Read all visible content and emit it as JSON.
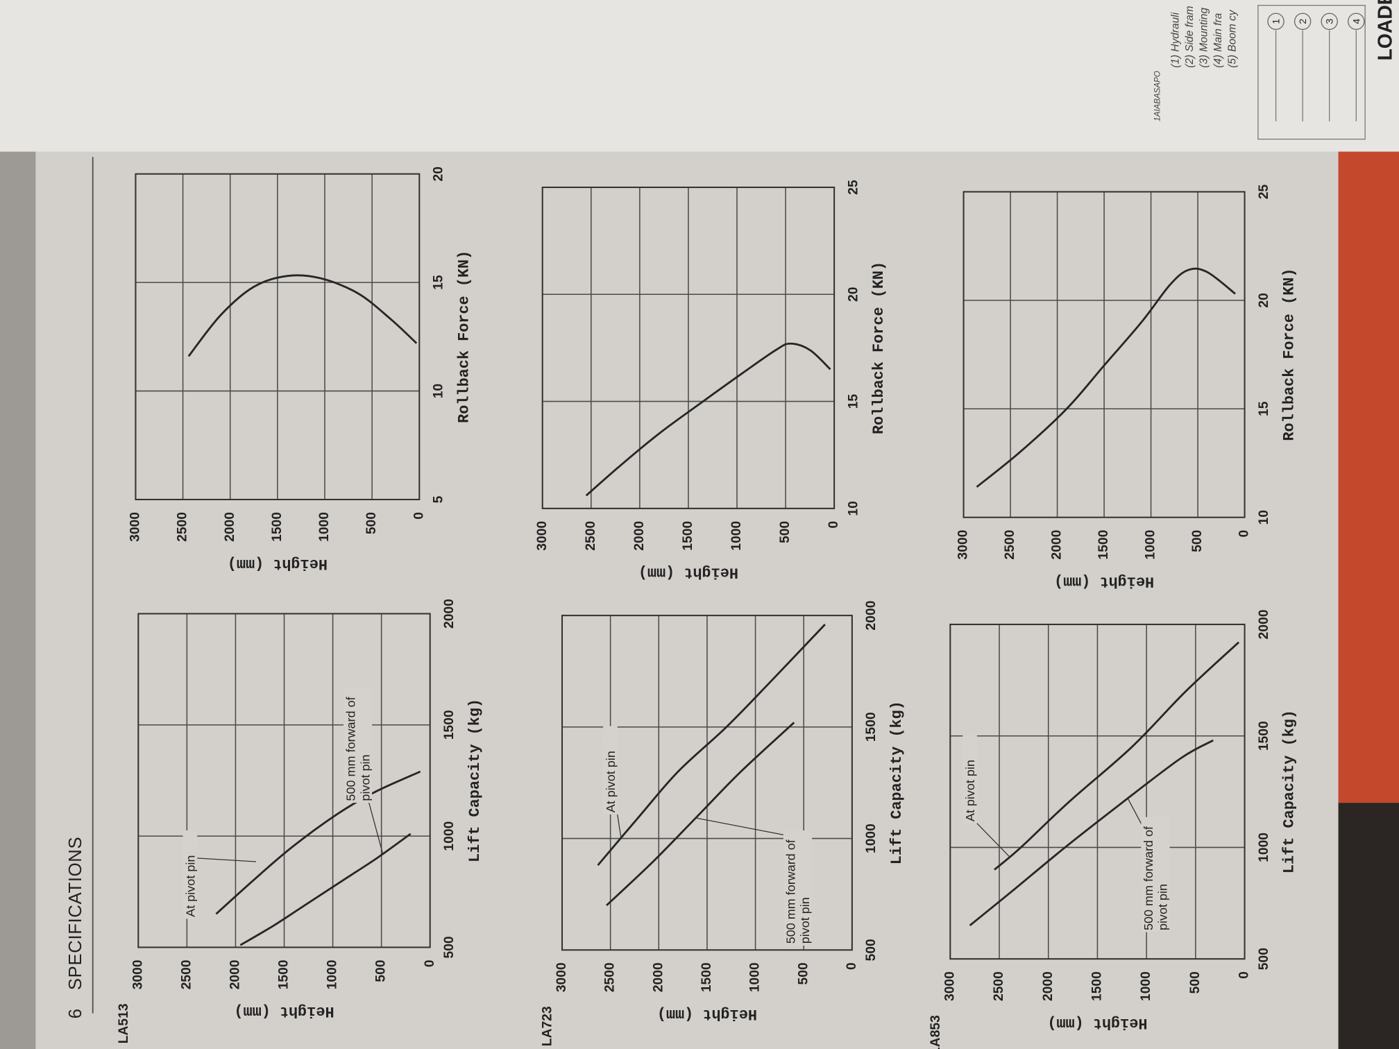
{
  "header": {
    "page_number": "6",
    "title": "SPECIFICATIONS"
  },
  "chart_data": [
    {
      "type": "line",
      "title": "LA513",
      "x_label": "Lift Capacity (kg)",
      "y_label": "Height (mm)",
      "xlim": [
        500,
        2000
      ],
      "xticks": [
        500,
        1000,
        1500,
        2000
      ],
      "ylim": [
        0,
        3000
      ],
      "yticks": [
        0,
        500,
        1000,
        1500,
        2000,
        2500,
        3000
      ],
      "grid": true,
      "series": [
        {
          "name": "At pivot pin",
          "color": "#262626",
          "x": [
            650,
            800,
            950,
            1100,
            1200,
            1290
          ],
          "values": [
            2200,
            1820,
            1420,
            950,
            560,
            100
          ]
        },
        {
          "name": "500 mm forward of pivot pin",
          "color": "#262626",
          "x": [
            510,
            600,
            700,
            800,
            900,
            1010
          ],
          "values": [
            1950,
            1600,
            1250,
            900,
            550,
            200
          ]
        }
      ]
    },
    {
      "type": "line",
      "x_label": "Rollback Force (KN)",
      "y_label": "Height (mm)",
      "xlim": [
        5,
        20
      ],
      "xticks": [
        5,
        10,
        15,
        20
      ],
      "ylim": [
        0,
        3000
      ],
      "yticks": [
        0,
        500,
        1000,
        1500,
        2000,
        2500,
        3000
      ],
      "grid": true,
      "series": [
        {
          "color": "#262626",
          "x": [
            11.6,
            13.5,
            14.8,
            15.3,
            15.2,
            14.5,
            13.3,
            12.2
          ],
          "values": [
            2440,
            2100,
            1750,
            1400,
            1050,
            650,
            300,
            30
          ]
        }
      ]
    },
    {
      "type": "line",
      "title": "LA723",
      "x_label": "Lift Capacity (kg)",
      "y_label": "Height (mm)",
      "xlim": [
        500,
        2000
      ],
      "xticks": [
        500,
        1000,
        1500,
        2000
      ],
      "ylim": [
        0,
        3000
      ],
      "yticks": [
        0,
        500,
        1000,
        1500,
        2000,
        2500,
        3000
      ],
      "grid": true,
      "series": [
        {
          "name": "At pivot pin",
          "color": "#262626",
          "x": [
            880,
            1100,
            1300,
            1500,
            1700,
            1960
          ],
          "values": [
            2630,
            2200,
            1800,
            1300,
            850,
            280
          ]
        },
        {
          "name": "500 mm forward of pivot pin",
          "color": "#262626",
          "x": [
            700,
            900,
            1100,
            1300,
            1520
          ],
          "values": [
            2540,
            2050,
            1600,
            1150,
            600
          ]
        }
      ]
    },
    {
      "type": "line",
      "x_label": "Rollback Force (KN)",
      "y_label": "Height (mm)",
      "xlim": [
        10,
        25
      ],
      "xticks": [
        10,
        15,
        20,
        25
      ],
      "ylim": [
        0,
        3000
      ],
      "yticks": [
        0,
        500,
        1000,
        1500,
        2000,
        2500,
        3000
      ],
      "grid": true,
      "series": [
        {
          "color": "#262626",
          "x": [
            10.6,
            12,
            13.5,
            14.8,
            16.3,
            17.4,
            17.7,
            17.4,
            16.5
          ],
          "values": [
            2550,
            2200,
            1800,
            1410,
            950,
            600,
            450,
            250,
            40
          ]
        }
      ]
    },
    {
      "type": "line",
      "title": "LA853",
      "x_label": "Lift Capacity (kg)",
      "y_label": "Height (mm)",
      "xlim": [
        500,
        2000
      ],
      "xticks": [
        500,
        1000,
        1500,
        2000
      ],
      "ylim": [
        0,
        3000
      ],
      "yticks": [
        0,
        500,
        1000,
        1500,
        2000,
        2500,
        3000
      ],
      "grid": true,
      "series": [
        {
          "name": "At pivot pin",
          "color": "#262626",
          "x": [
            900,
            1000,
            1200,
            1450,
            1700,
            1920
          ],
          "values": [
            2550,
            2280,
            1800,
            1150,
            600,
            60
          ]
        },
        {
          "name": "500 mm forward of pivot pin",
          "color": "#262626",
          "x": [
            650,
            800,
            1000,
            1200,
            1400,
            1480
          ],
          "values": [
            2800,
            2380,
            1830,
            1250,
            650,
            320
          ]
        }
      ]
    },
    {
      "type": "line",
      "x_label": "Rollback Force (KN)",
      "y_label": "Height (mm)",
      "xlim": [
        10,
        25
      ],
      "xticks": [
        10,
        15,
        20,
        25
      ],
      "ylim": [
        0,
        3000
      ],
      "yticks": [
        0,
        500,
        1000,
        1500,
        2000,
        2500,
        3000
      ],
      "grid": true,
      "series": [
        {
          "color": "#262626",
          "x": [
            11.4,
            13,
            15,
            17,
            19,
            20.7,
            21.4,
            21.3,
            20.3
          ],
          "values": [
            2860,
            2400,
            1900,
            1500,
            1100,
            800,
            600,
            400,
            100
          ]
        }
      ]
    }
  ],
  "facing_page": {
    "heading": "LOADE",
    "callouts": [
      "1",
      "2",
      "3",
      "4"
    ],
    "figure_code": "1AIABASAPO",
    "items": [
      "(1) Hydrauli",
      "(2) Side fram",
      "(3) Mounting",
      "(4) Main fra",
      "(5) Boom cy"
    ]
  }
}
